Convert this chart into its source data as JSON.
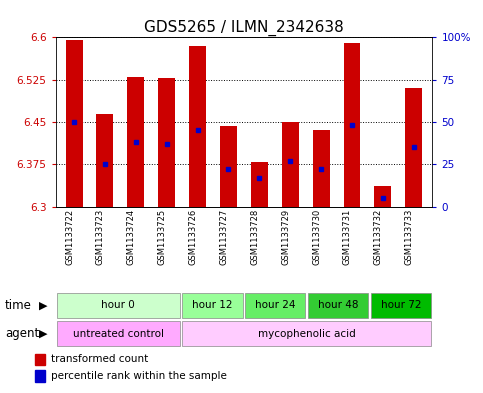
{
  "title": "GDS5265 / ILMN_2342638",
  "samples": [
    "GSM1133722",
    "GSM1133723",
    "GSM1133724",
    "GSM1133725",
    "GSM1133726",
    "GSM1133727",
    "GSM1133728",
    "GSM1133729",
    "GSM1133730",
    "GSM1133731",
    "GSM1133732",
    "GSM1133733"
  ],
  "transformed_count": [
    6.595,
    6.465,
    6.53,
    6.528,
    6.585,
    6.443,
    6.38,
    6.45,
    6.435,
    6.59,
    6.337,
    6.51
  ],
  "percentile_rank": [
    50,
    25,
    38,
    37,
    45,
    22,
    17,
    27,
    22,
    48,
    5,
    35
  ],
  "ymin": 6.3,
  "ymax": 6.6,
  "yticks": [
    6.3,
    6.375,
    6.45,
    6.525,
    6.6
  ],
  "ytick_labels": [
    "6.3",
    "6.375",
    "6.45",
    "6.525",
    "6.6"
  ],
  "right_yticks": [
    0,
    25,
    50,
    75,
    100
  ],
  "right_ytick_labels": [
    "0",
    "25",
    "50",
    "75",
    "100%"
  ],
  "bar_color": "#cc0000",
  "dot_color": "#0000cc",
  "time_groups": [
    {
      "label": "hour 0",
      "start": 0,
      "end": 4,
      "color": "#ccffcc"
    },
    {
      "label": "hour 12",
      "start": 4,
      "end": 6,
      "color": "#99ff99"
    },
    {
      "label": "hour 24",
      "start": 6,
      "end": 8,
      "color": "#66ee66"
    },
    {
      "label": "hour 48",
      "start": 8,
      "end": 10,
      "color": "#33cc33"
    },
    {
      "label": "hour 72",
      "start": 10,
      "end": 12,
      "color": "#00bb00"
    }
  ],
  "agent_groups": [
    {
      "label": "untreated control",
      "start": 0,
      "end": 4,
      "color": "#ffaaff"
    },
    {
      "label": "mycophenolic acid",
      "start": 4,
      "end": 12,
      "color": "#ffccff"
    }
  ],
  "tick_color_left": "#cc0000",
  "tick_color_right": "#0000cc",
  "background_color": "#ffffff",
  "bar_width": 0.55,
  "tick_fontsize": 7.5,
  "title_fontsize": 11,
  "sample_fontsize": 6,
  "row_fontsize": 7.5,
  "legend_fontsize": 7.5
}
